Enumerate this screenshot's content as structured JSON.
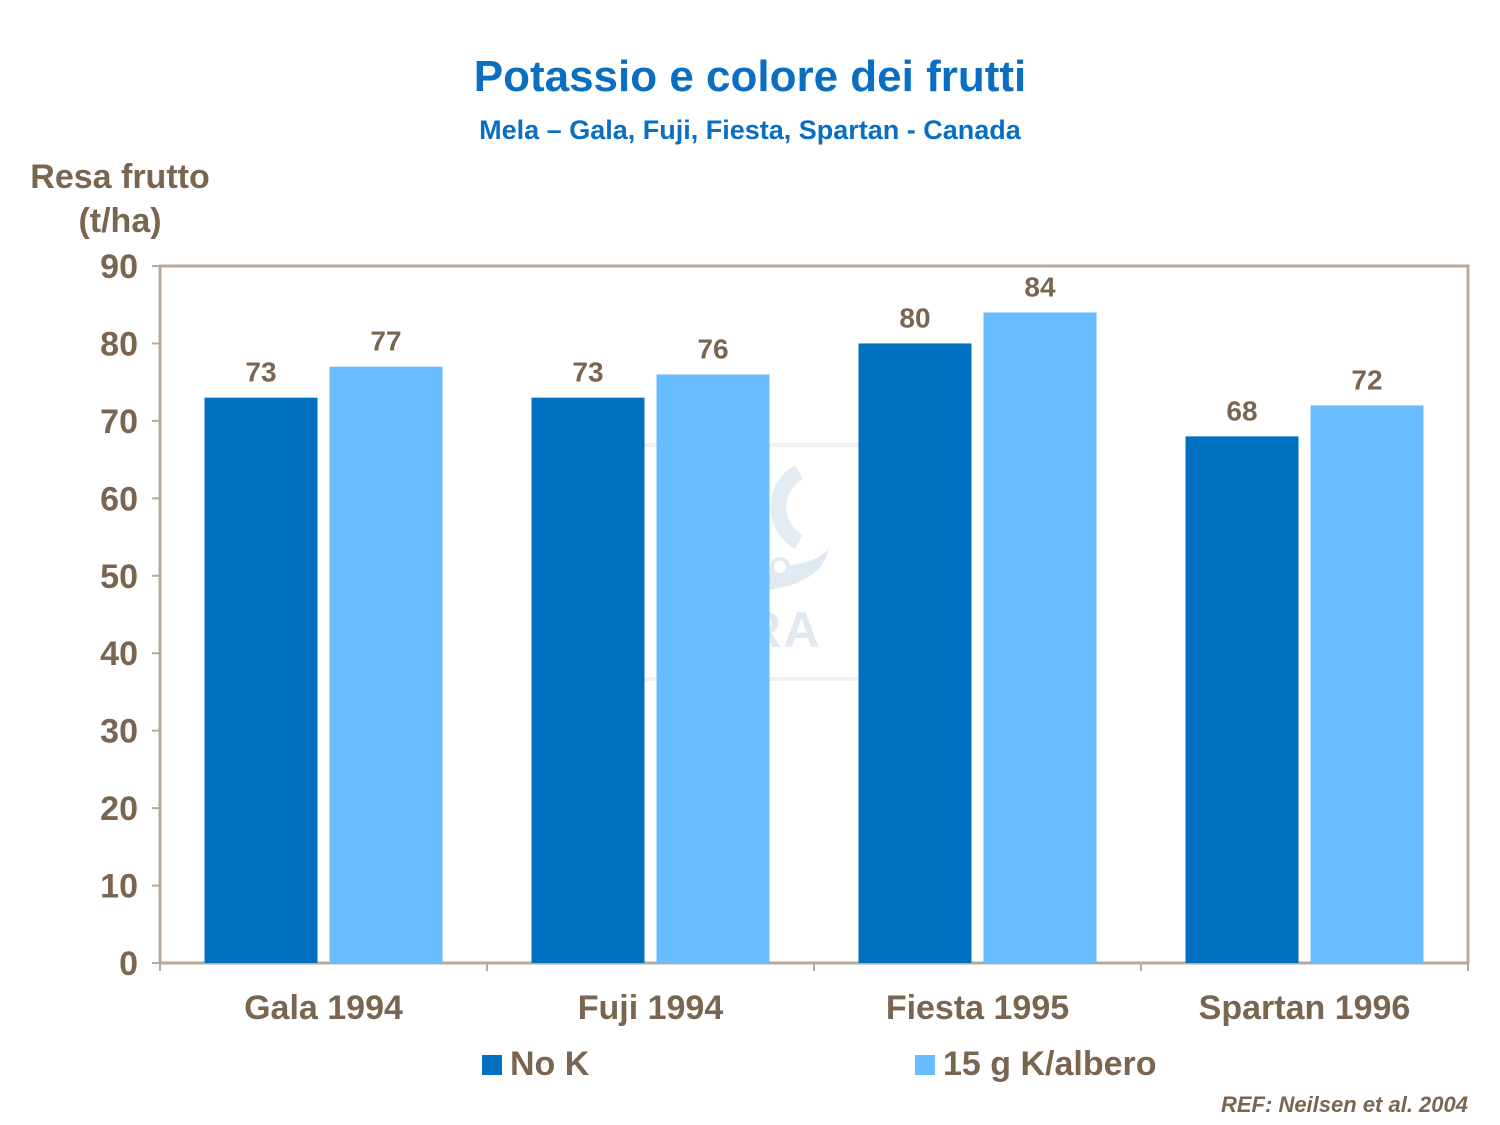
{
  "chart_data": {
    "type": "bar",
    "title": "Potassio e colore dei frutti",
    "subtitle": "Mela – Gala, Fuji, Fiesta, Spartan - Canada",
    "ylabel_line1": "Resa frutto",
    "ylabel_line2": "(t/ha)",
    "xlabel": "",
    "categories": [
      "Gala 1994",
      "Fuji 1994",
      "Fiesta 1995",
      "Spartan 1996"
    ],
    "series": [
      {
        "name": "No K",
        "values": [
          73,
          73,
          80,
          68
        ],
        "color": "#0070c0"
      },
      {
        "name": "15 g K/albero",
        "values": [
          77,
          76,
          84,
          72
        ],
        "color": "#69bdff"
      }
    ],
    "ylim": [
      0,
      90
    ],
    "yticks": [
      0,
      10,
      20,
      30,
      40,
      50,
      60,
      70,
      80,
      90
    ],
    "grid": false,
    "legend_position": "bottom",
    "reference": "REF: Neilsen et al. 2004",
    "watermark_text": "YARA",
    "colors": {
      "text": "#7a6650",
      "title": "#0a6fc2",
      "axis": "#b0a090"
    }
  }
}
